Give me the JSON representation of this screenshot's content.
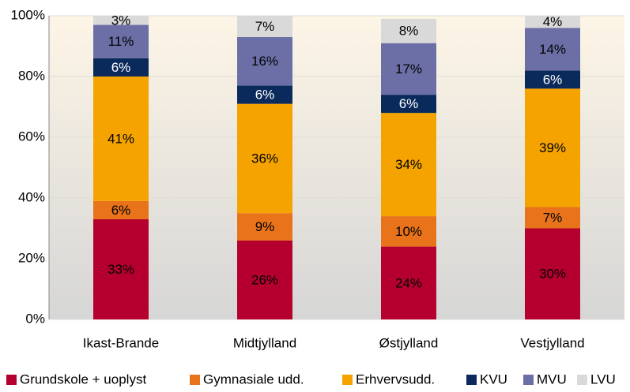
{
  "chart_data": {
    "type": "stacked_bar",
    "categories": [
      "Ikast-Brande",
      "Midtjylland",
      "Østjylland",
      "Vestjylland"
    ],
    "series": [
      {
        "name": "Grundskole + uoplyst",
        "color": "#b5002f",
        "values": [
          33,
          26,
          24,
          30
        ],
        "value_labels": [
          "33%",
          "26%",
          "24%",
          "30%"
        ]
      },
      {
        "name": "Gymnasiale udd.",
        "color": "#e8731a",
        "values": [
          6,
          9,
          10,
          7
        ],
        "value_labels": [
          "6%",
          "9%",
          "10%",
          "7%"
        ]
      },
      {
        "name": "Erhvervsudd.",
        "color": "#f5a300",
        "values": [
          41,
          36,
          34,
          39
        ],
        "value_labels": [
          "41%",
          "36%",
          "34%",
          "39%"
        ]
      },
      {
        "name": "KVU",
        "color": "#0b2a5c",
        "values": [
          6,
          6,
          6,
          6
        ],
        "value_labels": [
          "6%",
          "6%",
          "6%",
          "6%"
        ]
      },
      {
        "name": "MVU",
        "color": "#6b6fa6",
        "values": [
          11,
          16,
          17,
          14
        ],
        "value_labels": [
          "11%",
          "16%",
          "17%",
          "14%"
        ]
      },
      {
        "name": "LVU",
        "color": "#d9d9d9",
        "values": [
          3,
          7,
          8,
          4
        ],
        "value_labels": [
          "3%",
          "7%",
          "8%",
          "4%"
        ]
      }
    ],
    "ylim": [
      0,
      100
    ],
    "yticks": [
      {
        "value": 0,
        "label": "0%"
      },
      {
        "value": 20,
        "label": "20%"
      },
      {
        "value": 40,
        "label": "40%"
      },
      {
        "value": 60,
        "label": "60%"
      },
      {
        "value": 80,
        "label": "80%"
      },
      {
        "value": 100,
        "label": "100%"
      }
    ],
    "grid": true,
    "legend": "bottom"
  }
}
